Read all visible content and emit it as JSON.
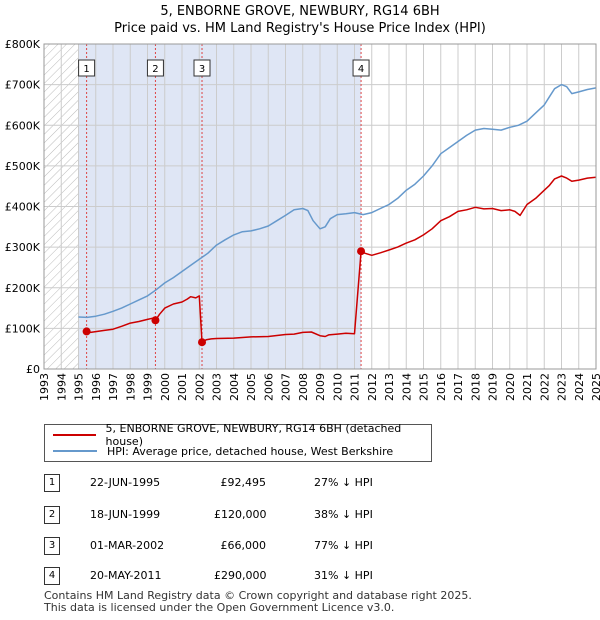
{
  "title_line1": "5, ENBORNE GROVE, NEWBURY, RG14 6BH",
  "title_line2": "Price paid vs. HM Land Registry's House Price Index (HPI)",
  "chart_data": {
    "type": "line",
    "title": "5, ENBORNE GROVE, NEWBURY, RG14 6BH — Price paid vs. HM Land Registry's House Price Index (HPI)",
    "xlim": [
      1993,
      2025
    ],
    "ylim": [
      0,
      800000
    ],
    "x_ticks": [
      "1993",
      "1994",
      "1995",
      "1996",
      "1997",
      "1998",
      "1999",
      "2000",
      "2001",
      "2002",
      "2003",
      "2004",
      "2005",
      "2006",
      "2007",
      "2008",
      "2009",
      "2010",
      "2011",
      "2012",
      "2013",
      "2014",
      "2015",
      "2016",
      "2017",
      "2018",
      "2019",
      "2020",
      "2021",
      "2022",
      "2023",
      "2024",
      "2025"
    ],
    "y_ticks": [
      {
        "value": 0,
        "label": "£0"
      },
      {
        "value": 100000,
        "label": "£100K"
      },
      {
        "value": 200000,
        "label": "£200K"
      },
      {
        "value": 300000,
        "label": "£300K"
      },
      {
        "value": 400000,
        "label": "£400K"
      },
      {
        "value": 500000,
        "label": "£500K"
      },
      {
        "value": 600000,
        "label": "£600K"
      },
      {
        "value": 700000,
        "label": "£700K"
      },
      {
        "value": 800000,
        "label": "£800K"
      }
    ],
    "hatch_region": [
      1993,
      1995.0
    ],
    "series": [
      {
        "name": "5, ENBORNE GROVE, NEWBURY, RG14 6BH (detached house)",
        "color": "#cc0000",
        "x": [
          1995.47,
          1995.7,
          1996,
          1996.5,
          1997,
          1997.5,
          1998,
          1998.5,
          1999,
          1999.3,
          1999.46,
          1999.7,
          2000,
          2000.5,
          2001,
          2001.3,
          2001.5,
          2001.8,
          2002.0,
          2002.16,
          2002.4,
          2002.7,
          2003,
          2004,
          2005,
          2006,
          2007,
          2007.5,
          2008,
          2008.5,
          2009,
          2009.3,
          2009.5,
          2010,
          2010.5,
          2011,
          2011.38,
          2011.6,
          2012,
          2012.5,
          2013,
          2013.5,
          2014,
          2014.5,
          2015,
          2015.5,
          2016,
          2016.5,
          2017,
          2017.5,
          2018,
          2018.5,
          2019,
          2019.5,
          2020,
          2020.3,
          2020.6,
          2021,
          2021.5,
          2022,
          2022.3,
          2022.6,
          2023,
          2023.3,
          2023.6,
          2024,
          2024.5,
          2025
        ],
        "y": [
          92495,
          90000,
          92000,
          95000,
          98000,
          105000,
          113000,
          117000,
          122000,
          125000,
          120000,
          135000,
          150000,
          160000,
          165000,
          172000,
          178000,
          175000,
          180000,
          66000,
          72000,
          74000,
          75000,
          76000,
          79000,
          80000,
          85000,
          86000,
          90000,
          91000,
          82000,
          80000,
          84000,
          86000,
          88000,
          87000,
          290000,
          285000,
          280000,
          286000,
          293000,
          300000,
          310000,
          318000,
          330000,
          345000,
          365000,
          375000,
          388000,
          392000,
          398000,
          394000,
          395000,
          390000,
          392000,
          388000,
          378000,
          405000,
          420000,
          440000,
          452000,
          468000,
          475000,
          470000,
          462000,
          465000,
          470000,
          472000
        ]
      },
      {
        "name": "HPI: Average price, detached house, West Berkshire",
        "color": "#6699cc",
        "x": [
          1995,
          1995.5,
          1996,
          1996.5,
          1997,
          1997.5,
          1998,
          1998.5,
          1999,
          1999.5,
          2000,
          2000.5,
          2001,
          2001.5,
          2002,
          2002.5,
          2003,
          2003.5,
          2004,
          2004.5,
          2005,
          2005.5,
          2006,
          2006.5,
          2007,
          2007.5,
          2008,
          2008.3,
          2008.6,
          2009,
          2009.3,
          2009.6,
          2010,
          2010.5,
          2011,
          2011.5,
          2012,
          2012.5,
          2013,
          2013.5,
          2014,
          2014.5,
          2015,
          2015.5,
          2016,
          2016.5,
          2017,
          2017.5,
          2018,
          2018.5,
          2019,
          2019.5,
          2020,
          2020.5,
          2021,
          2021.5,
          2022,
          2022.3,
          2022.6,
          2023,
          2023.3,
          2023.6,
          2024,
          2024.5,
          2025
        ],
        "y": [
          128000,
          127000,
          130000,
          135000,
          142000,
          150000,
          160000,
          170000,
          180000,
          195000,
          212000,
          225000,
          240000,
          255000,
          270000,
          285000,
          305000,
          318000,
          330000,
          338000,
          340000,
          345000,
          352000,
          365000,
          378000,
          392000,
          395000,
          390000,
          365000,
          345000,
          350000,
          370000,
          380000,
          382000,
          385000,
          380000,
          385000,
          395000,
          405000,
          420000,
          440000,
          455000,
          475000,
          500000,
          530000,
          545000,
          560000,
          575000,
          588000,
          592000,
          590000,
          588000,
          595000,
          600000,
          610000,
          630000,
          650000,
          670000,
          690000,
          700000,
          695000,
          678000,
          682000,
          688000,
          692000
        ]
      }
    ],
    "sales": [
      {
        "label": "1",
        "x": 1995.47,
        "y": 92495
      },
      {
        "label": "2",
        "x": 1999.46,
        "y": 120000
      },
      {
        "label": "3",
        "x": 2002.16,
        "y": 66000
      },
      {
        "label": "4",
        "x": 2011.38,
        "y": 290000
      }
    ]
  },
  "legend": {
    "items": [
      {
        "label": "5, ENBORNE GROVE, NEWBURY, RG14 6BH (detached house)",
        "color": "#cc0000"
      },
      {
        "label": "HPI: Average price, detached house, West Berkshire",
        "color": "#6699cc"
      }
    ]
  },
  "transactions": [
    {
      "num": "1",
      "date": "22-JUN-1995",
      "price": "£92,495",
      "hpi": "27% ↓ HPI"
    },
    {
      "num": "2",
      "date": "18-JUN-1999",
      "price": "£120,000",
      "hpi": "38% ↓ HPI"
    },
    {
      "num": "3",
      "date": "01-MAR-2002",
      "price": "£66,000",
      "hpi": "77% ↓ HPI"
    },
    {
      "num": "4",
      "date": "20-MAY-2011",
      "price": "£290,000",
      "hpi": "31% ↓ HPI"
    }
  ],
  "footer": {
    "line1": "Contains HM Land Registry data © Crown copyright and database right 2025.",
    "line2": "This data is licensed under the Open Government Licence v3.0."
  }
}
